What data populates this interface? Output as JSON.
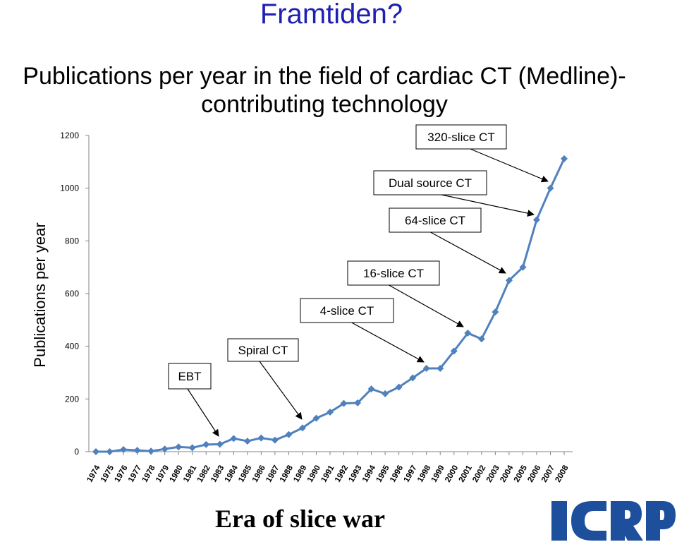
{
  "slide": {
    "title": "Framtiden?",
    "footer": "Era of slice war",
    "logo_text": "ICRP"
  },
  "chart_data": {
    "type": "line",
    "title_line1": "Publications per year in the field of cardiac CT (Medline)-",
    "title_line2": "contributing technology",
    "ylabel": "Publications per year",
    "xlabel": "",
    "ylim": [
      0,
      1200
    ],
    "yticks": [
      0,
      200,
      400,
      600,
      800,
      1000,
      1200
    ],
    "categories": [
      "1974",
      "1975",
      "1976",
      "1977",
      "1978",
      "1979",
      "1980",
      "1981",
      "1982",
      "1983",
      "1984",
      "1985",
      "1986",
      "1987",
      "1988",
      "1989",
      "1990",
      "1991",
      "1992",
      "1993",
      "1994",
      "1995",
      "1996",
      "1997",
      "1998",
      "1999",
      "2000",
      "2001",
      "2002",
      "2003",
      "2004",
      "2005",
      "2006",
      "2007",
      "2008"
    ],
    "series": [
      {
        "values": [
          0,
          0,
          8,
          5,
          2,
          10,
          18,
          15,
          27,
          28,
          50,
          40,
          52,
          44,
          65,
          90,
          127,
          150,
          183,
          185,
          238,
          220,
          245,
          280,
          316,
          316,
          382,
          450,
          428,
          530,
          650,
          700,
          880,
          1000,
          1112
        ],
        "color": "#4f81bd"
      }
    ],
    "grid": false,
    "legend": "none",
    "annotations": [
      {
        "label": "EBT",
        "points_to": "1983"
      },
      {
        "label": "Spiral CT",
        "points_to": "1989"
      },
      {
        "label": "4-slice CT",
        "points_to": "1998"
      },
      {
        "label": "16-slice CT",
        "points_to": "2001"
      },
      {
        "label": "64-slice CT",
        "points_to": "2004"
      },
      {
        "label": "Dual source CT",
        "points_to": "2006"
      },
      {
        "label": "320-slice CT",
        "points_to": "2008"
      }
    ]
  }
}
